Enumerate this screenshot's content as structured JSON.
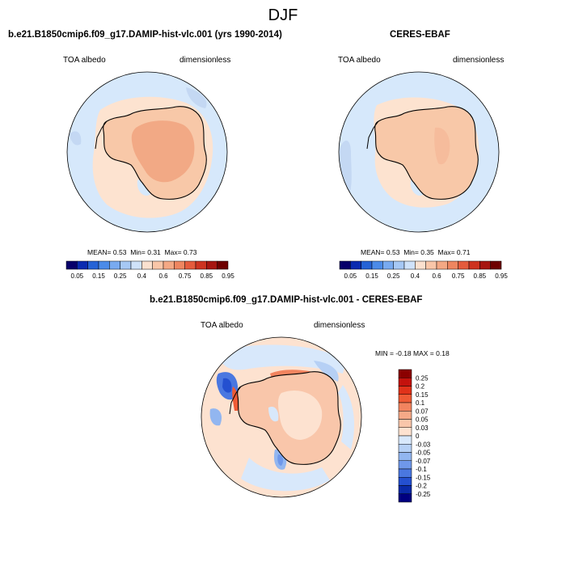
{
  "page": {
    "title": "DJF"
  },
  "colors": {
    "ocean": "#d6e8fb",
    "ice_light": "#fde3d0",
    "ice_mid": "#f8c8a8",
    "ice_dark": "#f2a985",
    "coast": "#000000"
  },
  "chart_data": [
    {
      "type": "heatmap",
      "title": "b.e21.B1850cmip6.f09_g17.DAMIP-hist-vlc.001 (yrs 1990-2014)",
      "left_label": "TOA albedo",
      "right_label": "dimensionless",
      "stats": {
        "mean_label": "MEAN=",
        "mean": "0.53",
        "min_label": "Min=",
        "min": "0.31",
        "max_label": "Max=",
        "max": "0.73"
      },
      "colorbar": {
        "ticks": [
          "0.05",
          "0.15",
          "0.25",
          "0.4",
          "0.6",
          "0.75",
          "0.85",
          "0.95"
        ],
        "colors": [
          "#08006a",
          "#0a2bb0",
          "#2563d6",
          "#4b8be8",
          "#78aaf0",
          "#a6c8f5",
          "#cfe2fa",
          "#fbe1cf",
          "#f9c6a8",
          "#f4a884",
          "#ee8660",
          "#e45b3c",
          "#cd3320",
          "#a61510",
          "#6e0000"
        ]
      }
    },
    {
      "type": "heatmap",
      "title": "CERES-EBAF",
      "left_label": "TOA albedo",
      "right_label": "dimensionless",
      "stats": {
        "mean_label": "MEAN=",
        "mean": "0.53",
        "min_label": "Min=",
        "min": "0.35",
        "max_label": "Max=",
        "max": "0.71"
      },
      "colorbar": {
        "ticks": [
          "0.05",
          "0.15",
          "0.25",
          "0.4",
          "0.6",
          "0.75",
          "0.85",
          "0.95"
        ],
        "colors": [
          "#08006a",
          "#0a2bb0",
          "#2563d6",
          "#4b8be8",
          "#78aaf0",
          "#a6c8f5",
          "#cfe2fa",
          "#fbe1cf",
          "#f9c6a8",
          "#f4a884",
          "#ee8660",
          "#e45b3c",
          "#cd3320",
          "#a61510",
          "#6e0000"
        ]
      }
    },
    {
      "type": "heatmap",
      "title": "b.e21.B1850cmip6.f09_g17.DAMIP-hist-vlc.001 - CERES-EBAF",
      "left_label": "TOA albedo",
      "right_label": "dimensionless",
      "stats": {
        "min_label": "MIN =",
        "min": "-0.18",
        "max_label": "MAX =",
        "max": "0.18"
      },
      "colorbar": {
        "ticks": [
          "0.25",
          "0.2",
          "0.15",
          "0.1",
          "0.07",
          "0.05",
          "0.03",
          "0",
          "-0.03",
          "-0.05",
          "-0.07",
          "-0.1",
          "-0.15",
          "-0.2",
          "-0.25"
        ],
        "colors": [
          "#8b0000",
          "#c4120d",
          "#e0321a",
          "#ee5a35",
          "#f2845f",
          "#f6a987",
          "#f9c6aa",
          "#fde2d0",
          "#d8e8fb",
          "#b6d0f5",
          "#92b6f0",
          "#6f98ea",
          "#4a77e0",
          "#2450d0",
          "#0a2aa8",
          "#000080"
        ]
      }
    }
  ]
}
